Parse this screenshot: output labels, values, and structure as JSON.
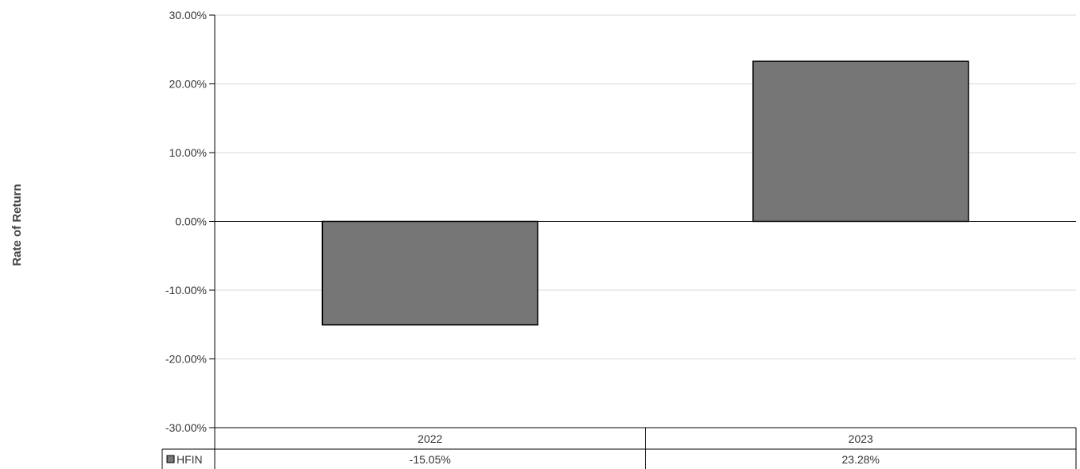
{
  "chart_data": {
    "type": "bar",
    "title": "",
    "xlabel": "",
    "ylabel": "Rate of Return",
    "categories": [
      "2022",
      "2023"
    ],
    "series": [
      {
        "name": "HFIN",
        "values": [
          -15.05,
          23.28
        ],
        "labels": [
          "-15.05%",
          "23.28%"
        ],
        "color": "#757675"
      }
    ],
    "ylim": [
      -30,
      30
    ],
    "yticks": [
      30,
      20,
      10,
      0,
      -10,
      -20,
      -30
    ],
    "ytick_labels": [
      "30.00%",
      "20.00%",
      "10.00%",
      "0.00%",
      "-10.00%",
      "-20.00%",
      "-30.00%"
    ],
    "grid": true,
    "legend": "data-table-bottom"
  }
}
